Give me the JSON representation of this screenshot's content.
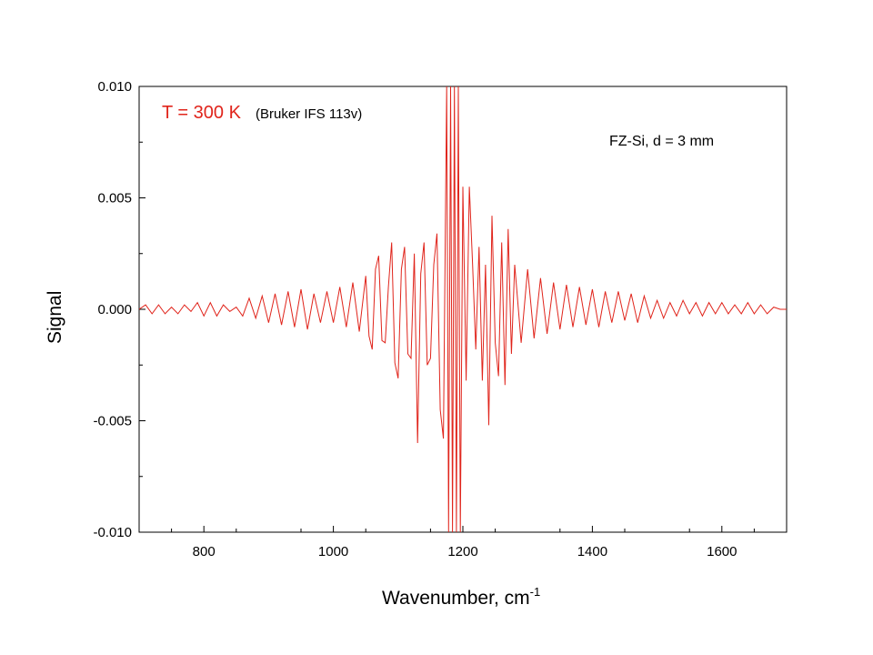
{
  "chart_data": {
    "type": "line",
    "xlabel": "Wavenumber, cm",
    "xlabel_superscript": "-1",
    "ylabel": "Signal",
    "xlim": [
      700,
      1700
    ],
    "ylim": [
      -0.01,
      0.01
    ],
    "x_ticks": [
      "800",
      "1000",
      "1200",
      "1400",
      "1600"
    ],
    "x_tick_values": [
      800,
      1000,
      1200,
      1400,
      1600
    ],
    "y_ticks": [
      "0.010",
      "0.005",
      "0.000",
      "-0.005",
      "-0.010"
    ],
    "y_tick_values": [
      0.01,
      0.005,
      0.0,
      -0.005,
      -0.01
    ],
    "grid": false,
    "series_color": "#e0241b",
    "annotations": {
      "temperature": "T = 300 K",
      "instrument": "(Bruker IFS 113v)",
      "sample": "FZ-Si,  d = 3 mm"
    },
    "series": [
      {
        "x": [
          700,
          710,
          720,
          730,
          740,
          750,
          760,
          770,
          780,
          790,
          800,
          810,
          820,
          830,
          840,
          850,
          860,
          870,
          880,
          890,
          900,
          910,
          920,
          930,
          940,
          950,
          960,
          970,
          980,
          990,
          1000,
          1010,
          1020,
          1030,
          1040,
          1050,
          1055,
          1060,
          1065,
          1070,
          1075,
          1080,
          1085,
          1090,
          1095,
          1100,
          1105,
          1110,
          1115,
          1120,
          1125,
          1130,
          1135,
          1140,
          1145,
          1150,
          1155,
          1160,
          1165,
          1170,
          1175,
          1178,
          1181,
          1184,
          1187,
          1190,
          1193,
          1196,
          1200,
          1205,
          1210,
          1215,
          1220,
          1225,
          1230,
          1235,
          1240,
          1245,
          1250,
          1255,
          1260,
          1265,
          1270,
          1275,
          1280,
          1290,
          1300,
          1310,
          1320,
          1330,
          1340,
          1350,
          1360,
          1370,
          1380,
          1390,
          1400,
          1410,
          1420,
          1430,
          1440,
          1450,
          1460,
          1470,
          1480,
          1490,
          1500,
          1510,
          1520,
          1530,
          1540,
          1550,
          1560,
          1570,
          1580,
          1590,
          1600,
          1610,
          1620,
          1630,
          1640,
          1650,
          1660,
          1670,
          1680,
          1690,
          1700
        ],
        "y": [
          0.0,
          0.0002,
          -0.0002,
          0.0002,
          -0.0002,
          0.0001,
          -0.0002,
          0.0002,
          -0.0001,
          0.0003,
          -0.0003,
          0.0003,
          -0.0003,
          0.0002,
          -0.0001,
          0.0001,
          -0.0003,
          0.0005,
          -0.0004,
          0.0006,
          -0.0006,
          0.0007,
          -0.0007,
          0.0008,
          -0.0008,
          0.0009,
          -0.0009,
          0.0007,
          -0.0006,
          0.0008,
          -0.0006,
          0.001,
          -0.0008,
          0.0012,
          -0.001,
          0.0015,
          -0.0012,
          -0.0018,
          0.0018,
          0.0024,
          -0.0014,
          -0.0015,
          0.001,
          0.003,
          -0.0024,
          -0.0031,
          0.0018,
          0.0028,
          -0.002,
          -0.0022,
          0.0025,
          -0.006,
          0.0016,
          0.003,
          -0.0025,
          -0.0022,
          0.002,
          0.0034,
          -0.0045,
          -0.0058,
          0.01,
          -0.01,
          0.01,
          -0.01,
          0.01,
          -0.01,
          0.01,
          -0.01,
          0.0055,
          -0.0032,
          0.0055,
          0.002,
          -0.0018,
          0.0028,
          -0.0032,
          0.002,
          -0.0052,
          0.0042,
          -0.0015,
          -0.003,
          0.003,
          -0.0034,
          0.0036,
          -0.002,
          0.002,
          -0.0015,
          0.0018,
          -0.0013,
          0.0014,
          -0.0011,
          0.0012,
          -0.0009,
          0.0011,
          -0.0008,
          0.001,
          -0.0007,
          0.0009,
          -0.0008,
          0.0008,
          -0.0006,
          0.0008,
          -0.0005,
          0.0007,
          -0.0006,
          0.0006,
          -0.0004,
          0.0004,
          -0.0004,
          0.0003,
          -0.0003,
          0.0004,
          -0.0002,
          0.0003,
          -0.0003,
          0.0003,
          -0.0002,
          0.0003,
          -0.0002,
          0.0002,
          -0.0002,
          0.0003,
          -0.0002,
          0.0002,
          -0.0002,
          0.0001,
          0.0,
          0.0
        ]
      }
    ]
  }
}
